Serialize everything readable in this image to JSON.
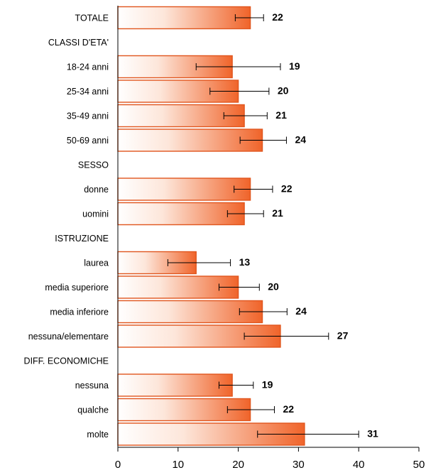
{
  "chart_data": {
    "type": "bar",
    "orientation": "horizontal",
    "title": "",
    "xlabel": "",
    "ylabel": "",
    "xlim": [
      0,
      50
    ],
    "x_ticks": [
      "0",
      "10",
      "20",
      "30",
      "40",
      "50"
    ],
    "grid": false,
    "legend": "none",
    "bar_colors": {
      "light": "#ffffff",
      "dark": "#f0642a",
      "border": "#e0561e"
    },
    "rows": [
      {
        "label": "TOTALE",
        "kind": "bar",
        "value": 22,
        "value_label": "22",
        "error": [
          19.5,
          24.2
        ]
      },
      {
        "label": "CLASSI D'ETA'",
        "kind": "header"
      },
      {
        "label": "18-24 anni",
        "kind": "bar",
        "value": 19,
        "value_label": "19",
        "error": [
          13,
          27
        ]
      },
      {
        "label": "25-34 anni",
        "kind": "bar",
        "value": 20,
        "value_label": "20",
        "error": [
          15.3,
          25.1
        ]
      },
      {
        "label": "35-49 anni",
        "kind": "bar",
        "value": 21,
        "value_label": "21",
        "error": [
          17.6,
          24.8
        ]
      },
      {
        "label": "50-69 anni",
        "kind": "bar",
        "value": 24,
        "value_label": "24",
        "error": [
          20.3,
          28
        ]
      },
      {
        "label": "SESSO",
        "kind": "header"
      },
      {
        "label": "donne",
        "kind": "bar",
        "value": 22,
        "value_label": "22",
        "error": [
          19.3,
          25.7
        ]
      },
      {
        "label": "uomini",
        "kind": "bar",
        "value": 21,
        "value_label": "21",
        "error": [
          18.2,
          24.2
        ]
      },
      {
        "label": "ISTRUZIONE",
        "kind": "header"
      },
      {
        "label": "laurea",
        "kind": "bar",
        "value": 13,
        "value_label": "13",
        "error": [
          8.3,
          18.7
        ]
      },
      {
        "label": "media superiore",
        "kind": "bar",
        "value": 20,
        "value_label": "20",
        "error": [
          16.8,
          23.5
        ]
      },
      {
        "label": "media inferiore",
        "kind": "bar",
        "value": 24,
        "value_label": "24",
        "error": [
          20.2,
          28.1
        ]
      },
      {
        "label": "nessuna/elementare",
        "kind": "bar",
        "value": 27,
        "value_label": "27",
        "error": [
          21,
          35
        ]
      },
      {
        "label": "DIFF. ECONOMICHE",
        "kind": "header"
      },
      {
        "label": "nessuna",
        "kind": "bar",
        "value": 19,
        "value_label": "19",
        "error": [
          16.8,
          22.5
        ]
      },
      {
        "label": "qualche",
        "kind": "bar",
        "value": 22,
        "value_label": "22",
        "error": [
          18.2,
          26
        ]
      },
      {
        "label": "molte",
        "kind": "bar",
        "value": 31,
        "value_label": "31",
        "error": [
          23.2,
          40
        ]
      }
    ]
  }
}
